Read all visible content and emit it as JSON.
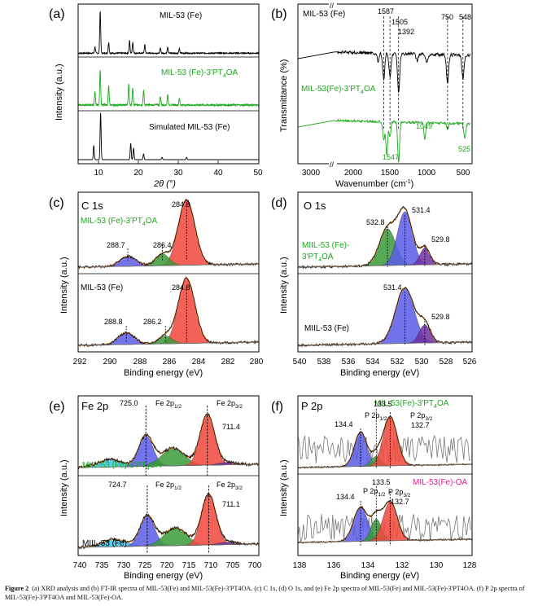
{
  "caption": {
    "label": "Figure 2",
    "text": "(a) XRD analysis and (b) FT-IR spectra of MIL-53(Fe) and MIL-53(Fe)-3'PT4OA. (c) C 1s, (d) O 1s, and (e) Fe 2p spectra of MIL-53(Fe) and MIL-53(Fe)-3'PT4OA. (f) P 2p spectra of MIL-53(Fe)-3'PT4OA and MIL-53(Fe)-OA."
  },
  "colors": {
    "black": "#000000",
    "green": "#1aa81a",
    "orange": "#e8832a",
    "red": "#f0463c",
    "blue": "#5a5ae6",
    "darkgreen": "#3a9a3a",
    "cyan": "#40c8e8",
    "purple": "#7030a0",
    "gray": "#777777",
    "magenta": "#e0208a"
  },
  "chart_data": [
    {
      "id": "a",
      "type": "line",
      "panel_label": "(a)",
      "xlabel": "2θ (°)",
      "ylabel": "Intensity (a.u.)",
      "xlim": [
        5,
        50
      ],
      "xticks": [
        "10",
        "20",
        "30",
        "40",
        "50"
      ],
      "series": [
        {
          "name": "MIL-53 (Fe)",
          "color": "#000000",
          "peaks": [
            [
              9.2,
              0.15
            ],
            [
              10.5,
              1.0
            ],
            [
              12.6,
              0.25
            ],
            [
              17.8,
              0.3
            ],
            [
              18.6,
              0.25
            ],
            [
              21.6,
              0.2
            ],
            [
              25.5,
              0.12
            ],
            [
              27.3,
              0.15
            ],
            [
              30.2,
              0.1
            ]
          ]
        },
        {
          "name": "MIL-53 (Fe)-3'PT4OA",
          "color": "#1aa81a",
          "peaks": [
            [
              9.2,
              0.3
            ],
            [
              10.5,
              0.85
            ],
            [
              12.6,
              0.45
            ],
            [
              17.6,
              0.5
            ],
            [
              18.6,
              0.4
            ],
            [
              21.3,
              0.35
            ],
            [
              25.5,
              0.2
            ],
            [
              27.3,
              0.25
            ],
            [
              30.2,
              0.15
            ]
          ]
        },
        {
          "name": "Simulated MIL-53 (Fe)",
          "color": "#000000",
          "peaks": [
            [
              8.9,
              0.3
            ],
            [
              10.6,
              1.0
            ],
            [
              18.1,
              0.35
            ],
            [
              18.8,
              0.25
            ],
            [
              21.3,
              0.12
            ],
            [
              25.9,
              0.05
            ],
            [
              32.0,
              0.05
            ]
          ]
        }
      ]
    },
    {
      "id": "b",
      "type": "line",
      "panel_label": "(b)",
      "xlabel": "Wavenumber (cm-1)",
      "ylabel": "Transmittance (%)",
      "xticks": [
        "3000",
        "2000",
        "1500",
        "1000",
        "500"
      ],
      "series": [
        {
          "name": "MIL-53 (Fe)",
          "color": "#000000",
          "bands": [
            1587,
            1505,
            1392,
            750,
            548
          ]
        },
        {
          "name": "MIL-53(Fe)-3'PT4OA",
          "color": "#1aa81a",
          "bands": [
            1547,
            1049,
            525
          ]
        }
      ],
      "annotations": [
        "1587",
        "1505",
        "1392",
        "750",
        "548",
        "1049",
        "1547",
        "525"
      ]
    },
    {
      "id": "c",
      "type": "line",
      "panel_label": "(c)",
      "title": "C 1s",
      "xlabel": "Binding energy (eV)",
      "ylabel": "Intensity (a.u.)",
      "xlim": [
        292,
        280
      ],
      "xticks": [
        "292",
        "290",
        "288",
        "286",
        "284",
        "282",
        "280"
      ],
      "subplots": [
        {
          "name": "MIL-53 (Fe)-3'PT4OA",
          "peaks": [
            {
              "center": 284.8,
              "label": "284.8",
              "color": "#f0463c"
            },
            {
              "center": 286.4,
              "label": "286.4",
              "color": "#3a9a3a"
            },
            {
              "center": 288.7,
              "label": "288.7",
              "color": "#5a5ae6"
            }
          ]
        },
        {
          "name": "MIL-53 (Fe)",
          "peaks": [
            {
              "center": 284.8,
              "label": "284.8",
              "color": "#f0463c"
            },
            {
              "center": 286.2,
              "label": "286.2",
              "color": "#3a9a3a"
            },
            {
              "center": 288.8,
              "label": "288.8",
              "color": "#5a5ae6"
            }
          ]
        }
      ]
    },
    {
      "id": "d",
      "type": "line",
      "panel_label": "(d)",
      "title": "O 1s",
      "xlabel": "Binding energy (eV)",
      "ylabel": "Intensity (a.u.)",
      "xlim": [
        540,
        526
      ],
      "xticks": [
        "540",
        "538",
        "536",
        "534",
        "532",
        "530",
        "528",
        "526"
      ],
      "subplots": [
        {
          "name": "MIIL-53 (Fe)-3'PT4OA",
          "peaks": [
            {
              "center": 532.8,
              "label": "532.8",
              "color": "#3a9a3a"
            },
            {
              "center": 531.4,
              "label": "531.4",
              "color": "#5a5ae6"
            },
            {
              "center": 529.8,
              "label": "529.8",
              "color": "#f0463c"
            }
          ]
        },
        {
          "name": "MIIL-53 (Fe)",
          "peaks": [
            {
              "center": 531.4,
              "label": "531.4",
              "color": "#5a5ae6"
            },
            {
              "center": 529.8,
              "label": "529.8",
              "color": "#f0463c"
            }
          ]
        }
      ]
    },
    {
      "id": "e",
      "type": "line",
      "panel_label": "(e)",
      "title": "Fe 2p",
      "xlabel": "Binding energy (eV)",
      "ylabel": "Intensity (a.u.)",
      "xlim": [
        740,
        700
      ],
      "xticks": [
        "740",
        "735",
        "730",
        "725",
        "720",
        "715",
        "710",
        "705",
        "700"
      ],
      "subplots": [
        {
          "name": "MIIL-53 (Fe)-3'PT4OA",
          "labels": [
            "725.0",
            "Fe 2p1/2",
            "Fe 2p3/2",
            "711.4"
          ]
        },
        {
          "name": "MIIL-53 (Fe)",
          "labels": [
            "724.7",
            "Fe 2p1/2",
            "Fe 2p3/2",
            "711.1"
          ]
        }
      ]
    },
    {
      "id": "f",
      "type": "line",
      "panel_label": "(f)",
      "title": "P 2p",
      "xlabel": "Binding energy (eV)",
      "ylabel": "Intensity (a.u.)",
      "xlim": [
        138,
        128
      ],
      "xticks": [
        "138",
        "136",
        "134",
        "132",
        "130",
        "128"
      ],
      "subplots": [
        {
          "name": "MIL-53(Fe)-3'PT4OA",
          "color": "#1aa81a",
          "labels": [
            "133.5",
            "134.4",
            "P 2p1/2",
            "P 2p3/2",
            "132.7"
          ]
        },
        {
          "name": "MIL-53(Fe)-OA",
          "color": "#e0208a",
          "labels": [
            "133.5",
            "134.4",
            "P 2p1/2",
            "P 2p3/2",
            "132.7"
          ]
        }
      ]
    }
  ],
  "text": {
    "a_label": "(a)",
    "a_s1": "MIL-53 (Fe)",
    "a_s2": "MIL-53 (Fe)-3'PT",
    "a_s2sub": "4",
    "a_s2end": "OA",
    "a_s3": "Simulated MIL-53 (Fe)",
    "a_ylabel": "Intensity (a.u.)",
    "a_xlabel": "2θ (°)",
    "a_t1": "10",
    "a_t2": "20",
    "a_t3": "30",
    "a_t4": "40",
    "a_t5": "50",
    "b_label": "(b)",
    "b_s1": "MIL-53 (Fe)",
    "b_s2": "MIL-53(Fe)-3'PT",
    "b_s2sub": "4",
    "b_s2end": "OA",
    "b_ylabel": "Transmittance (%)",
    "b_xlabel": "Wavenumber (cm",
    "b_xlabel_sup": "-1",
    "b_xlabel_end": ")",
    "b_t1": "3000",
    "b_t2": "2000",
    "b_t3": "1500",
    "b_t4": "1000",
    "b_t5": "500",
    "b_n1587": "1587",
    "b_n1505": "1505",
    "b_n1392": "1392",
    "b_n750": "750",
    "b_n548": "548",
    "b_n1049": "1049",
    "b_n1547": "1547",
    "b_n525": "525",
    "c_label": "(c)",
    "c_title": "C 1s",
    "c_top": "MIL-53 (Fe)-3'PT",
    "c_topsub": "4",
    "c_topend": "OA",
    "c_bot": "MIL-53 (Fe)",
    "c_p1": "284.8",
    "c_p2": "286.4",
    "c_p3": "288.7",
    "c_q1": "284.8",
    "c_q2": "286.2",
    "c_q3": "288.8",
    "c_ylabel": "Intensity (a.u.)",
    "c_xlabel": "Binding energy (eV)",
    "c_t1": "292",
    "c_t2": "290",
    "c_t3": "288",
    "c_t4": "286",
    "c_t5": "284",
    "c_t6": "282",
    "c_t7": "280",
    "d_label": "(d)",
    "d_title": "O 1s",
    "d_top1": "MIIL-53 (Fe)-",
    "d_top2": "3'PT",
    "d_top2sub": "4",
    "d_top2end": "OA",
    "d_bot": "MIIL-53 (Fe)",
    "d_p1": "532.8",
    "d_p2": "531.4",
    "d_p3": "529.8",
    "d_q1": "531.4",
    "d_q2": "529.8",
    "d_ylabel": "Intensity (a.u.)",
    "d_xlabel": "Binding energy (eV)",
    "d_t1": "540",
    "d_t2": "538",
    "d_t3": "536",
    "d_t4": "534",
    "d_t5": "532",
    "d_t6": "530",
    "d_t7": "528",
    "d_t8": "526",
    "e_label": "(e)",
    "e_title": "Fe 2p",
    "e_top": "MIIL-53 (Fe)-3'PT",
    "e_topsub": "4",
    "e_topend": "OA",
    "e_bot": "MIIL-53 (Fe)",
    "e_p1": "725.0",
    "e_fe12": "Fe 2p",
    "e_fe12sub": "1/2",
    "e_fe32": "Fe 2p",
    "e_fe32sub": "3/2",
    "e_p2": "711.4",
    "e_q1": "724.7",
    "e_q2": "711.1",
    "e_ylabel": "Intensity (a.u.)",
    "e_xlabel": "Binding energy (eV)",
    "e_t1": "740",
    "e_t2": "735",
    "e_t3": "730",
    "e_t4": "725",
    "e_t5": "720",
    "e_t6": "715",
    "e_t7": "710",
    "e_t8": "705",
    "e_t9": "700",
    "f_label": "(f)",
    "f_title": "P 2p",
    "f_top": "MIL-53(Fe)-3'PT",
    "f_topsub": "4",
    "f_topend": "OA",
    "f_bot": "MIL-53(Fe)-OA",
    "f_p1": "133.5",
    "f_p2": "134.4",
    "f_p12": "P 2p",
    "f_p12sub": "1/2",
    "f_p32": "P 2p",
    "f_p32sub": "3/2",
    "f_p3": "132.7",
    "f_ylabel": "Intensity (a.u.)",
    "f_xlabel": "Binding energy (eV)",
    "f_t1": "138",
    "f_t2": "136",
    "f_t3": "134",
    "f_t4": "132",
    "f_t5": "130",
    "f_t6": "128"
  }
}
